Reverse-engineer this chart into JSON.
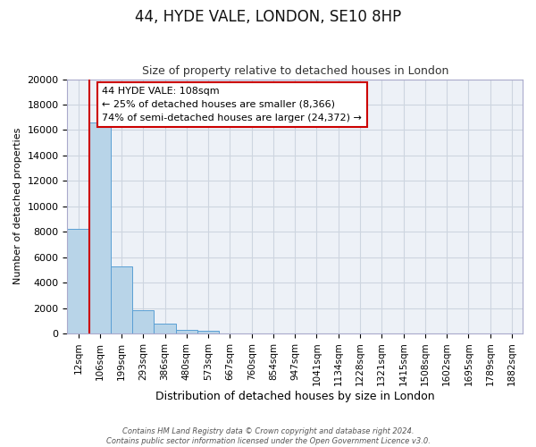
{
  "title": "44, HYDE VALE, LONDON, SE10 8HP",
  "subtitle": "Size of property relative to detached houses in London",
  "xlabel": "Distribution of detached houses by size in London",
  "ylabel": "Number of detached properties",
  "bar_labels": [
    "12sqm",
    "106sqm",
    "199sqm",
    "293sqm",
    "386sqm",
    "480sqm",
    "573sqm",
    "667sqm",
    "760sqm",
    "854sqm",
    "947sqm",
    "1041sqm",
    "1134sqm",
    "1228sqm",
    "1321sqm",
    "1415sqm",
    "1508sqm",
    "1602sqm",
    "1695sqm",
    "1789sqm",
    "1882sqm"
  ],
  "bar_values": [
    8200,
    16600,
    5300,
    1800,
    750,
    270,
    210,
    0,
    0,
    0,
    0,
    0,
    0,
    0,
    0,
    0,
    0,
    0,
    0,
    0,
    0
  ],
  "bar_color": "#b8d4e8",
  "bar_edge_color": "#5a9fd4",
  "ylim": [
    0,
    20000
  ],
  "yticks": [
    0,
    2000,
    4000,
    6000,
    8000,
    10000,
    12000,
    14000,
    16000,
    18000,
    20000
  ],
  "annotation_line1": "44 HYDE VALE: 108sqm",
  "annotation_line2": "← 25% of detached houses are smaller (8,366)",
  "annotation_line3": "74% of semi-detached houses are larger (24,372) →",
  "property_line_x_label": "106sqm",
  "property_line_color": "#cc0000",
  "grid_color": "#cdd5e0",
  "background_color": "#edf1f7",
  "footer_line1": "Contains HM Land Registry data © Crown copyright and database right 2024.",
  "footer_line2": "Contains public sector information licensed under the Open Government Licence v3.0."
}
